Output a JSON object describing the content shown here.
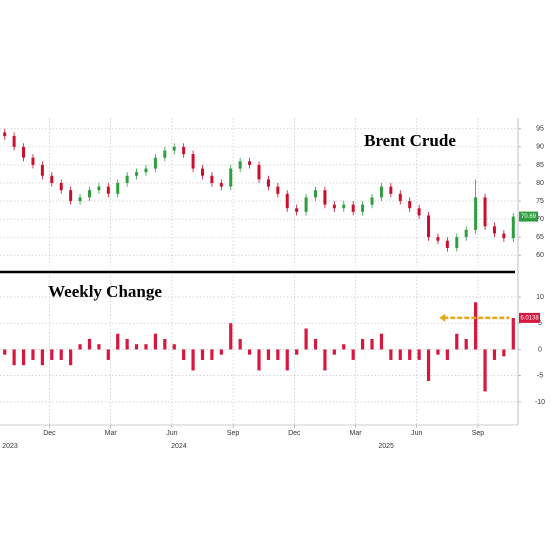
{
  "chart_data": [
    {
      "type": "candlestick",
      "title": "Brent Crude",
      "x": [
        0,
        2,
        4,
        6,
        8,
        10,
        12,
        14,
        16,
        18,
        20,
        22,
        24,
        26,
        28,
        30,
        32,
        34,
        36,
        38,
        40,
        42,
        44,
        46,
        48,
        50,
        52,
        54,
        56,
        58,
        60,
        62,
        64,
        66,
        68,
        70,
        72,
        74,
        76,
        78,
        80,
        82,
        84,
        86,
        88,
        90,
        92,
        94,
        96,
        98,
        100,
        102,
        104,
        106,
        108
      ],
      "open": [
        94,
        93,
        90,
        87,
        85,
        82,
        80,
        78,
        75,
        76,
        78,
        79,
        77,
        80,
        82,
        83,
        84,
        87,
        89,
        90,
        88,
        84,
        82,
        80,
        79,
        84,
        86,
        85,
        81,
        79,
        77,
        73,
        72,
        76,
        78,
        74,
        73,
        74,
        72,
        74,
        76,
        79,
        77,
        75,
        73,
        71,
        65,
        64,
        62,
        65,
        67,
        76,
        68,
        66,
        64.68
      ],
      "high": [
        95,
        94,
        91,
        88,
        86,
        83,
        81,
        79,
        77,
        79,
        80,
        80,
        81,
        83,
        84,
        85,
        88,
        90,
        91,
        91,
        89,
        85,
        83,
        81,
        85,
        87,
        87,
        86,
        82,
        80,
        78,
        74,
        77,
        79,
        79,
        75,
        75,
        75,
        75,
        77,
        80,
        80,
        78,
        76,
        74,
        72,
        66,
        65,
        66,
        68,
        81,
        77,
        69,
        67,
        71.69
      ],
      "low": [
        92,
        89,
        86,
        84,
        81,
        79,
        77,
        74,
        74,
        75,
        77,
        76,
        76,
        79,
        81,
        82,
        83,
        86,
        88,
        87,
        83,
        81,
        79,
        78,
        78,
        83,
        84,
        80,
        78,
        76,
        72,
        71,
        71,
        75,
        73,
        72,
        72,
        71,
        71,
        73,
        75,
        76,
        74,
        72,
        70,
        64,
        63,
        61,
        61,
        64,
        66,
        67,
        65,
        63.68,
        63.68
      ],
      "close": [
        93,
        90,
        87,
        85,
        82,
        80,
        78,
        75,
        76,
        78,
        79,
        77,
        80,
        82,
        83,
        84,
        87,
        89,
        90,
        88,
        84,
        82,
        80,
        79,
        84,
        86,
        85,
        81,
        79,
        77,
        73,
        72,
        76,
        78,
        74,
        73,
        74,
        72,
        74,
        76,
        79,
        77,
        75,
        73,
        71,
        65,
        64,
        62,
        65,
        67,
        76,
        68,
        66,
        64.68,
        70.69
      ],
      "up_color": "#2e9e3e",
      "down_color": "#c8102e",
      "tag_color": "#2e9e3e",
      "xlim": [
        -1,
        109
      ],
      "ylim": [
        57,
        98
      ],
      "yticks": [
        60,
        65,
        70,
        75,
        80,
        85,
        90,
        95
      ],
      "grid": true
    },
    {
      "type": "bar",
      "title": "Weekly Change",
      "x": [
        0,
        2,
        4,
        6,
        8,
        10,
        12,
        14,
        16,
        18,
        20,
        22,
        24,
        26,
        28,
        30,
        32,
        34,
        36,
        38,
        40,
        42,
        44,
        46,
        48,
        50,
        52,
        54,
        56,
        58,
        60,
        62,
        64,
        66,
        68,
        70,
        72,
        74,
        76,
        78,
        80,
        82,
        84,
        86,
        88,
        90,
        92,
        94,
        96,
        98,
        100,
        102,
        104,
        106,
        108
      ],
      "values": [
        -1,
        -3,
        -3,
        -2,
        -3,
        -2,
        -2,
        -3,
        1,
        2,
        1,
        -2,
        3,
        2,
        1,
        1,
        3,
        2,
        1,
        -2,
        -4,
        -2,
        -2,
        -1,
        5,
        2,
        -1,
        -4,
        -2,
        -2,
        -4,
        -1,
        4,
        2,
        -4,
        -1,
        1,
        -2,
        2,
        2,
        3,
        -2,
        -2,
        -2,
        -2,
        -6,
        -1,
        -2,
        3,
        2,
        9,
        -8,
        -2,
        -1.32,
        6.0138
      ],
      "color": "#d6173f",
      "tag_color": "#d6173f",
      "xlim": [
        -1,
        109
      ],
      "ylim": [
        -14.4,
        14
      ],
      "yticks": [
        -10,
        -5,
        0,
        5,
        10
      ],
      "grid": true,
      "xticks": [
        {
          "value": 9.5,
          "label": "Dec"
        },
        {
          "value": 22.5,
          "label": "Mar"
        },
        {
          "value": 35.5,
          "label": "Jun"
        },
        {
          "value": 48.5,
          "label": "Sep"
        },
        {
          "value": 61.5,
          "label": "Dec"
        },
        {
          "value": 74.5,
          "label": "Mar"
        },
        {
          "value": 87.5,
          "label": "Jun"
        },
        {
          "value": 100.5,
          "label": "Sep"
        }
      ],
      "year_labels": [
        {
          "value": 0,
          "label": "2023"
        },
        {
          "value": 37,
          "label": "2024"
        },
        {
          "value": 81,
          "label": "2025"
        }
      ]
    }
  ]
}
